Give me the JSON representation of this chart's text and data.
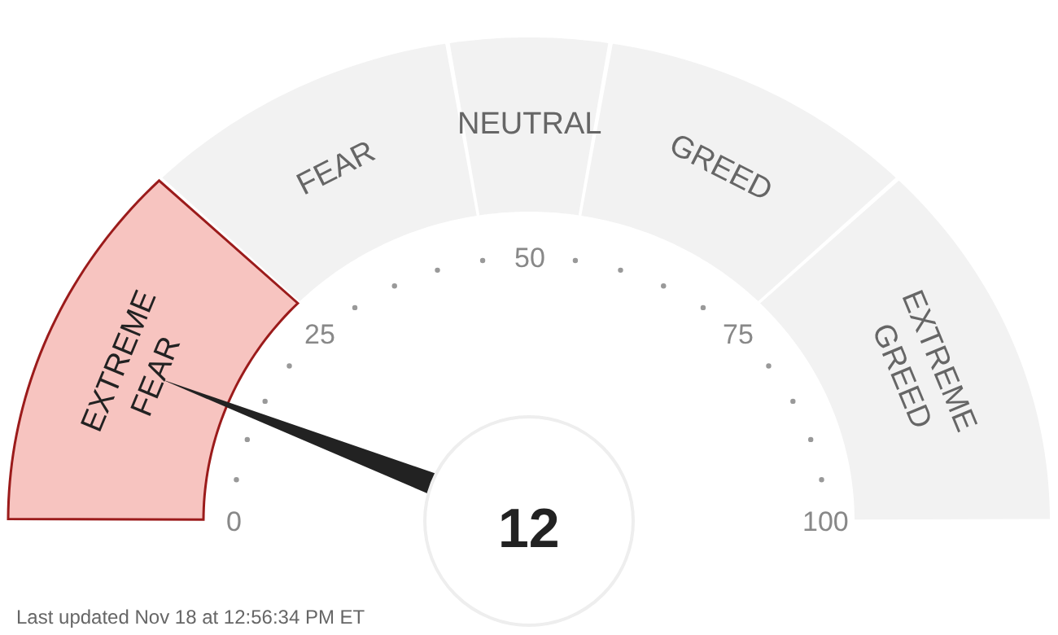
{
  "chart_data": {
    "type": "donut",
    "categories": [
      "EXTREME\nFEAR",
      "FEAR",
      "NEUTRAL",
      "GREED",
      "EXTREME\nGREED"
    ],
    "values": [
      25,
      20,
      10,
      20,
      25
    ],
    "colors": [
      "#f7c4c0",
      "#f2f2f2",
      "#f2f2f2",
      "#f2f2f2",
      "#f2f2f2"
    ],
    "needle": "EXTREME\nFEAR",
    "annotations": [
      "12",
      "0",
      "25",
      "50",
      "75",
      "100",
      "Last updated Nov 18 at 12:56:34 PM ET"
    ]
  }
}
